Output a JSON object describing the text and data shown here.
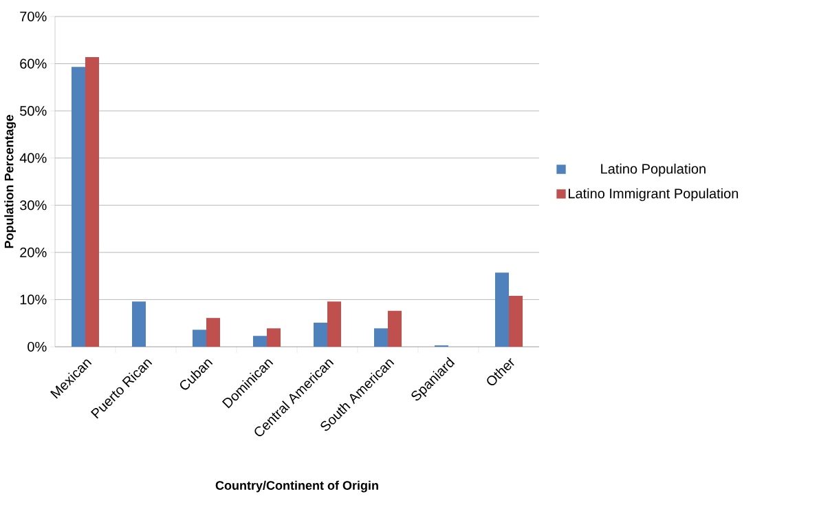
{
  "chart_data": {
    "type": "bar",
    "xlabel": "Country/Continent of Origin",
    "ylabel": "Population Percentage",
    "categories": [
      "Mexican",
      "Puerto Rican",
      "Cuban",
      "Dominican",
      "Central American",
      "South American",
      "Spaniard",
      "Other"
    ],
    "series": [
      {
        "name": "Latino Population",
        "color": "#4f81bd",
        "values": [
          59.3,
          9.6,
          3.6,
          2.3,
          5.1,
          3.9,
          0.3,
          15.7
        ]
      },
      {
        "name": "Latino Immigrant Population",
        "color": "#c0504d",
        "values": [
          61.4,
          null,
          6.1,
          3.9,
          9.6,
          7.6,
          null,
          10.8
        ]
      }
    ],
    "ylim": [
      0,
      70
    ],
    "yticks": [
      {
        "value": 0,
        "label": "0%"
      },
      {
        "value": 10,
        "label": "10%"
      },
      {
        "value": 20,
        "label": "20%"
      },
      {
        "value": 30,
        "label": "30%"
      },
      {
        "value": 40,
        "label": "40%"
      },
      {
        "value": 50,
        "label": "50%"
      },
      {
        "value": 60,
        "label": "60%"
      },
      {
        "value": 70,
        "label": "70%"
      }
    ],
    "grid": "y",
    "legend": "right"
  }
}
